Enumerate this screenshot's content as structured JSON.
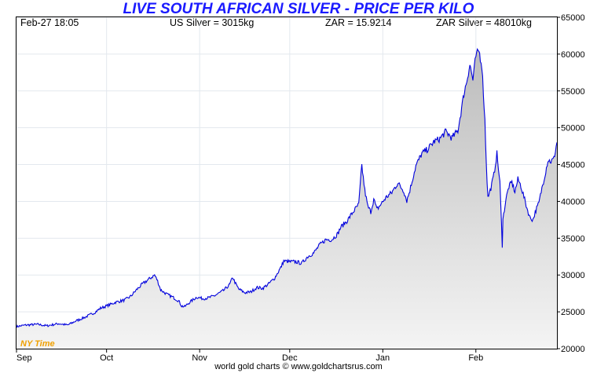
{
  "chart_data": {
    "type": "area",
    "title": "LIVE SOUTH AFRICAN SILVER - PRICE PER KILO",
    "info": {
      "datetime": "Feb-27  18:05",
      "us_silver": "US Silver = 3015kg",
      "zar": "ZAR = 15.9214",
      "zar_silver": "ZAR Silver = 48010kg"
    },
    "watermark": "NY Time",
    "footer": "world gold charts © www.goldchartsrus.com",
    "ylim": [
      20000,
      65000
    ],
    "y_ticks": [
      20000,
      25000,
      30000,
      35000,
      40000,
      45000,
      50000,
      55000,
      60000,
      65000
    ],
    "x_range": [
      "Sep 1",
      "Feb 28"
    ],
    "x_ticks": [
      {
        "label": "Sep",
        "day": 0
      },
      {
        "label": "Oct",
        "day": 30
      },
      {
        "label": "Nov",
        "day": 61
      },
      {
        "label": "Dec",
        "day": 91
      },
      {
        "label": "Jan",
        "day": 122
      },
      {
        "label": "Feb",
        "day": 153
      }
    ],
    "x_end_day": 180,
    "series": [
      {
        "color": "#0000dd",
        "points": [
          [
            0,
            23000
          ],
          [
            3,
            23200
          ],
          [
            7,
            23300
          ],
          [
            10,
            23100
          ],
          [
            14,
            23400
          ],
          [
            17,
            23200
          ],
          [
            20,
            23800
          ],
          [
            23,
            24300
          ],
          [
            26,
            24900
          ],
          [
            28,
            25500
          ],
          [
            30,
            25800
          ],
          [
            33,
            26300
          ],
          [
            36,
            26600
          ],
          [
            38,
            27100
          ],
          [
            40,
            28000
          ],
          [
            42,
            28800
          ],
          [
            44,
            29400
          ],
          [
            46,
            30000
          ],
          [
            47,
            29200
          ],
          [
            48,
            28000
          ],
          [
            50,
            27400
          ],
          [
            52,
            27000
          ],
          [
            54,
            26500
          ],
          [
            55,
            25800
          ],
          [
            56,
            25700
          ],
          [
            58,
            26400
          ],
          [
            60,
            27000
          ],
          [
            62,
            26800
          ],
          [
            64,
            26900
          ],
          [
            66,
            27200
          ],
          [
            69,
            27900
          ],
          [
            71,
            28700
          ],
          [
            72,
            29700
          ],
          [
            73,
            28800
          ],
          [
            74,
            28100
          ],
          [
            76,
            27600
          ],
          [
            78,
            27700
          ],
          [
            80,
            28300
          ],
          [
            82,
            28200
          ],
          [
            84,
            28800
          ],
          [
            86,
            29600
          ],
          [
            88,
            31000
          ],
          [
            89,
            31900
          ],
          [
            91,
            31800
          ],
          [
            93,
            31800
          ],
          [
            95,
            31600
          ],
          [
            97,
            32500
          ],
          [
            99,
            33000
          ],
          [
            101,
            34100
          ],
          [
            103,
            34800
          ],
          [
            105,
            34800
          ],
          [
            107,
            35600
          ],
          [
            108,
            36500
          ],
          [
            110,
            37300
          ],
          [
            112,
            38500
          ],
          [
            114,
            39600
          ],
          [
            115,
            44900
          ],
          [
            116,
            41500
          ],
          [
            117,
            39300
          ],
          [
            118,
            38600
          ],
          [
            119,
            40300
          ],
          [
            120,
            38900
          ],
          [
            121,
            39400
          ],
          [
            123,
            40500
          ],
          [
            125,
            41200
          ],
          [
            127,
            42500
          ],
          [
            129,
            41400
          ],
          [
            130,
            40100
          ],
          [
            131,
            41500
          ],
          [
            133,
            44800
          ],
          [
            135,
            46500
          ],
          [
            137,
            47100
          ],
          [
            139,
            48100
          ],
          [
            141,
            48500
          ],
          [
            143,
            49500
          ],
          [
            145,
            48600
          ],
          [
            147,
            49600
          ],
          [
            148,
            52000
          ],
          [
            149,
            54600
          ],
          [
            150,
            56400
          ],
          [
            151,
            58600
          ],
          [
            152,
            56500
          ],
          [
            153,
            59700
          ],
          [
            154,
            60500
          ],
          [
            155,
            58500
          ],
          [
            156,
            51000
          ],
          [
            156.5,
            45000
          ],
          [
            157,
            40500
          ],
          [
            158,
            41800
          ],
          [
            159,
            43600
          ],
          [
            160,
            46500
          ],
          [
            161,
            42500
          ],
          [
            161.8,
            34000
          ],
          [
            162,
            37500
          ],
          [
            163,
            40300
          ],
          [
            164,
            42000
          ],
          [
            165,
            42600
          ],
          [
            166,
            41300
          ],
          [
            167,
            43000
          ],
          [
            168,
            42100
          ],
          [
            169,
            40600
          ],
          [
            170,
            39100
          ],
          [
            171,
            37800
          ],
          [
            172,
            37500
          ],
          [
            173,
            38800
          ],
          [
            174,
            39800
          ],
          [
            175,
            41800
          ],
          [
            176,
            43600
          ],
          [
            177,
            45600
          ],
          [
            178,
            45400
          ],
          [
            179,
            45800
          ],
          [
            180,
            48010
          ]
        ]
      }
    ],
    "grid": true,
    "legend": "none"
  }
}
